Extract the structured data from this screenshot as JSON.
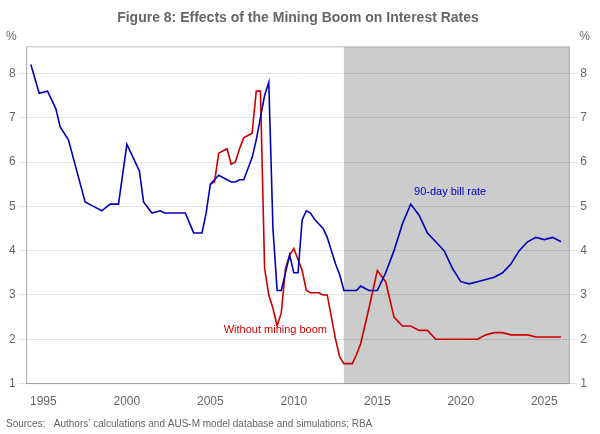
{
  "chart_data": {
    "type": "line",
    "title": "Figure 8: Effects of the Mining Boom on Interest Rates",
    "ylabel": "%",
    "y2label": "%",
    "source": "Sources:   Authors’ calculations and AUS-M model database and simulations; RBA",
    "xlim": [
      1994.0,
      2026.5
    ],
    "xticks": [
      1995,
      2000,
      2005,
      2010,
      2015,
      2020,
      2025
    ],
    "ylim": [
      1,
      8.6
    ],
    "yticks": [
      1,
      2,
      3,
      4,
      5,
      6,
      7,
      8
    ],
    "y2lim": [
      1,
      8.6
    ],
    "y2ticks": [
      1,
      2,
      3,
      4,
      5,
      6,
      7,
      8
    ],
    "grid": "y",
    "legend": false,
    "spans": [
      {
        "x": [
          2013.0,
          2026.5
        ],
        "color": "#cccccc"
      }
    ],
    "annotations": [
      {
        "text": "90-day bill rate",
        "x": 2017.2,
        "y": 5.15,
        "color": "#0000bb"
      },
      {
        "text": "Without mining boom",
        "x": 2005.8,
        "y": 2.05,
        "color": "#cc0000"
      }
    ],
    "series": [
      {
        "name": "90-day bill rate",
        "color": "#0000bb",
        "x": [
          1994.25,
          1994.75,
          1995.25,
          1995.75,
          1996.0,
          1996.5,
          1997.0,
          1997.5,
          1998.0,
          1998.5,
          1999.0,
          1999.5,
          2000.0,
          2000.25,
          2000.75,
          2001.0,
          2001.5,
          2002.0,
          2002.25,
          2002.5,
          2003.0,
          2003.5,
          2004.0,
          2004.5,
          2004.75,
          2005.0,
          2005.25,
          2005.5,
          2005.75,
          2006.0,
          2006.25,
          2006.5,
          2006.75,
          2007.0,
          2007.25,
          2007.5,
          2007.75,
          2008.0,
          2008.25,
          2008.5,
          2008.75,
          2009.0,
          2009.25,
          2009.5,
          2009.75,
          2010.0,
          2010.25,
          2010.5,
          2010.75,
          2011.0,
          2011.25,
          2011.5,
          2011.75,
          2012.0,
          2012.25,
          2012.5,
          2012.75,
          2013.0,
          2013.25,
          2013.5,
          2013.75,
          2014.0,
          2014.5,
          2015.0,
          2015.5,
          2016.0,
          2016.5,
          2017.0,
          2017.5,
          2018.0,
          2018.5,
          2019.0,
          2019.5,
          2020.0,
          2020.5,
          2021.0,
          2021.5,
          2022.0,
          2022.5,
          2023.0,
          2023.5,
          2024.0,
          2024.5,
          2025.0,
          2025.5,
          2026.0
        ],
        "values": [
          8.2,
          7.55,
          7.6,
          7.2,
          6.8,
          6.5,
          5.8,
          5.1,
          5.0,
          4.9,
          5.05,
          5.05,
          6.4,
          6.2,
          5.8,
          5.1,
          4.85,
          4.9,
          4.85,
          4.85,
          4.85,
          4.85,
          4.4,
          4.4,
          4.85,
          5.5,
          5.6,
          5.7,
          5.65,
          5.6,
          5.55,
          5.55,
          5.6,
          5.6,
          5.85,
          6.1,
          6.5,
          7.0,
          7.5,
          7.8,
          4.5,
          3.1,
          3.1,
          3.5,
          3.9,
          3.5,
          3.5,
          4.7,
          4.9,
          4.85,
          4.7,
          4.6,
          4.5,
          4.3,
          4.0,
          3.7,
          3.45,
          3.1,
          3.1,
          3.1,
          3.1,
          3.2,
          3.1,
          3.1,
          3.5,
          4.0,
          4.6,
          5.05,
          4.8,
          4.4,
          4.2,
          4.0,
          3.6,
          3.3,
          3.25,
          3.3,
          3.35,
          3.4,
          3.5,
          3.7,
          4.0,
          4.2,
          4.3,
          4.25,
          4.3,
          4.2
        ]
      },
      {
        "name": "Without mining boom",
        "color": "#cc0000",
        "x": [
          2005.0,
          2005.25,
          2005.5,
          2005.75,
          2006.0,
          2006.25,
          2006.5,
          2006.75,
          2007.0,
          2007.25,
          2007.5,
          2007.75,
          2008.0,
          2008.25,
          2008.5,
          2008.75,
          2009.0,
          2009.25,
          2009.5,
          2009.75,
          2010.0,
          2010.25,
          2010.5,
          2010.75,
          2011.0,
          2011.25,
          2011.5,
          2011.75,
          2012.0,
          2012.25,
          2012.5,
          2012.75,
          2013.0,
          2013.25,
          2013.5,
          2013.75,
          2014.0,
          2014.5,
          2015.0,
          2015.5,
          2016.0,
          2016.5,
          2017.0,
          2017.5,
          2018.0,
          2018.5,
          2019.0,
          2019.5,
          2020.0,
          2020.5,
          2021.0,
          2021.5,
          2022.0,
          2022.5,
          2023.0,
          2023.5,
          2024.0,
          2024.5,
          2025.0,
          2025.5,
          2026.0
        ],
        "values": [
          5.5,
          5.55,
          6.2,
          6.25,
          6.3,
          5.95,
          6.0,
          6.3,
          6.55,
          6.6,
          6.65,
          7.6,
          7.6,
          3.6,
          3.0,
          2.7,
          2.3,
          2.6,
          3.6,
          3.9,
          4.05,
          3.8,
          3.55,
          3.1,
          3.05,
          3.05,
          3.05,
          3.0,
          3.0,
          2.5,
          2.0,
          1.6,
          1.45,
          1.45,
          1.45,
          1.65,
          1.9,
          2.7,
          3.55,
          3.3,
          2.5,
          2.3,
          2.3,
          2.2,
          2.2,
          2.0,
          2.0,
          2.0,
          2.0,
          2.0,
          2.0,
          2.1,
          2.15,
          2.15,
          2.1,
          2.1,
          2.1,
          2.05,
          2.05,
          2.05,
          2.05
        ]
      }
    ]
  }
}
